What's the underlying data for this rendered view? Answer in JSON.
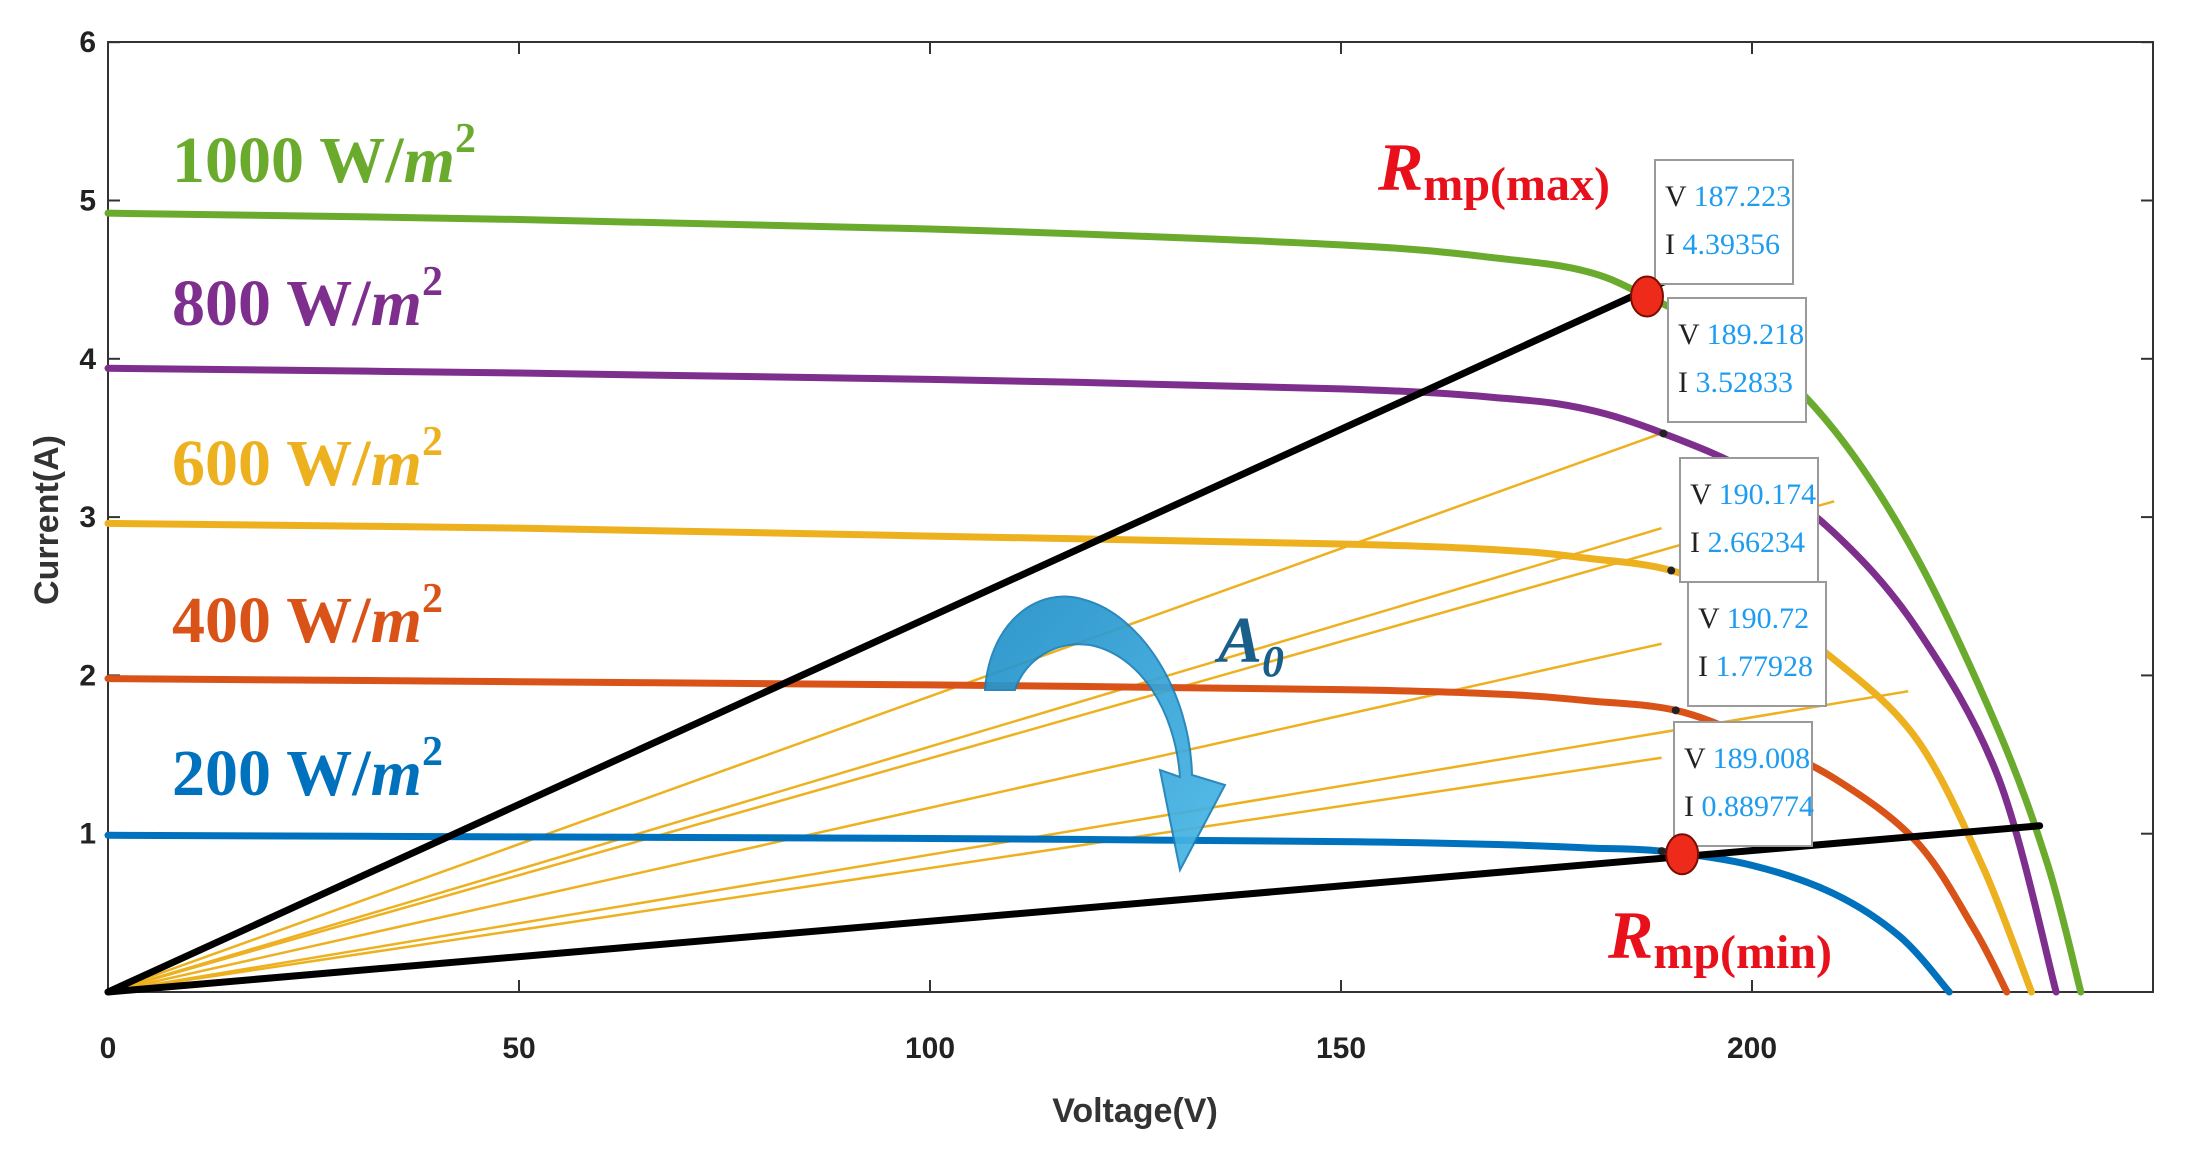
{
  "chart_data": {
    "type": "line",
    "title": "",
    "xlabel": "Voltage(V)",
    "ylabel": "Current(A)",
    "xlim": [
      0,
      250
    ],
    "ylim": [
      0,
      6
    ],
    "xticks": [
      "0",
      "50",
      "100",
      "150",
      "200"
    ],
    "xtick_values": [
      0,
      50,
      100,
      150,
      200
    ],
    "yticks": [
      "1",
      "2",
      "3",
      "4",
      "5",
      "6"
    ],
    "ytick_values": [
      1,
      2,
      3,
      4,
      5,
      6
    ],
    "series": [
      {
        "name": "1000 W/m2",
        "label_main": "1000 W/",
        "label_unit": "m",
        "label_sup": "2",
        "color": "#6aab2e",
        "points": [
          [
            0,
            4.92
          ],
          [
            50,
            4.88
          ],
          [
            100,
            4.82
          ],
          [
            150,
            4.72
          ],
          [
            170,
            4.63
          ],
          [
            180,
            4.55
          ],
          [
            187.223,
            4.39356
          ],
          [
            200,
            4.05
          ],
          [
            210,
            3.55
          ],
          [
            220,
            2.75
          ],
          [
            230,
            1.65
          ],
          [
            236,
            0.8
          ],
          [
            240,
            0.0
          ]
        ]
      },
      {
        "name": "800 W/m2",
        "label_main": "800 W/",
        "label_unit": "m",
        "label_sup": "2",
        "color": "#7e2f8e",
        "points": [
          [
            0,
            3.94
          ],
          [
            50,
            3.91
          ],
          [
            100,
            3.87
          ],
          [
            150,
            3.81
          ],
          [
            170,
            3.75
          ],
          [
            180,
            3.68
          ],
          [
            189.218,
            3.52833
          ],
          [
            200,
            3.28
          ],
          [
            210,
            2.9
          ],
          [
            220,
            2.3
          ],
          [
            230,
            1.35
          ],
          [
            237,
            0.0
          ]
        ]
      },
      {
        "name": "600 W/m2",
        "label_main": "600 W/",
        "label_unit": "m",
        "label_sup": "2",
        "color": "#edb120",
        "points": [
          [
            0,
            2.96
          ],
          [
            50,
            2.93
          ],
          [
            100,
            2.88
          ],
          [
            150,
            2.83
          ],
          [
            170,
            2.79
          ],
          [
            180,
            2.74
          ],
          [
            190.174,
            2.66234
          ],
          [
            200,
            2.45
          ],
          [
            210,
            2.1
          ],
          [
            220,
            1.6
          ],
          [
            228,
            0.8
          ],
          [
            234,
            0.0
          ]
        ]
      },
      {
        "name": "400 W/m2",
        "label_main": "400 W/",
        "label_unit": "m",
        "label_sup": "2",
        "color": "#d95319",
        "points": [
          [
            0,
            1.98
          ],
          [
            50,
            1.96
          ],
          [
            100,
            1.94
          ],
          [
            150,
            1.91
          ],
          [
            170,
            1.88
          ],
          [
            180,
            1.84
          ],
          [
            190.72,
            1.77928
          ],
          [
            200,
            1.6
          ],
          [
            210,
            1.35
          ],
          [
            220,
            0.95
          ],
          [
            227,
            0.4
          ],
          [
            231,
            0.0
          ]
        ]
      },
      {
        "name": "200 W/m2",
        "label_main": "200 W/",
        "label_unit": "m",
        "label_sup": "2",
        "color": "#0072bd",
        "points": [
          [
            0,
            0.99
          ],
          [
            50,
            0.98
          ],
          [
            100,
            0.97
          ],
          [
            150,
            0.95
          ],
          [
            170,
            0.93
          ],
          [
            180,
            0.91
          ],
          [
            189.008,
            0.889774
          ],
          [
            200,
            0.8
          ],
          [
            210,
            0.62
          ],
          [
            218,
            0.35
          ],
          [
            224,
            0.0
          ]
        ]
      }
    ],
    "mpp_points": [
      {
        "v_label": "V",
        "v": "187.223",
        "i_label": "I",
        "i": "4.39356",
        "x": 187.223,
        "y": 4.39356
      },
      {
        "v_label": "V",
        "v": "189.218",
        "i_label": "I",
        "i": "3.52833",
        "x": 189.218,
        "y": 3.52833
      },
      {
        "v_label": "V",
        "v": "190.174",
        "i_label": "I",
        "i": "2.66234",
        "x": 190.174,
        "y": 2.66234
      },
      {
        "v_label": "V",
        "v": "190.72",
        "i_label": "I",
        "i": "1.77928",
        "x": 190.72,
        "y": 1.77928
      },
      {
        "v_label": "V",
        "v": "189.008",
        "i_label": "I",
        "i": "0.889774",
        "x": 189.008,
        "y": 0.889774
      }
    ],
    "load_lines_black": [
      {
        "from": [
          0,
          0
        ],
        "to": [
          192,
          4.55
        ]
      },
      {
        "from": [
          0,
          0
        ],
        "to": [
          235,
          1.05
        ]
      }
    ],
    "load_lines_yellow": [
      {
        "from": [
          0,
          0
        ],
        "to": [
          189,
          3.53
        ]
      },
      {
        "from": [
          0,
          0
        ],
        "to": [
          189,
          2.93
        ]
      },
      {
        "from": [
          0,
          0
        ],
        "to": [
          189,
          2.2
        ]
      },
      {
        "from": [
          0,
          0
        ],
        "to": [
          219,
          1.9
        ]
      },
      {
        "from": [
          0,
          0
        ],
        "to": [
          189,
          1.48
        ]
      },
      {
        "from": [
          0,
          0
        ],
        "to": [
          210,
          3.1
        ]
      }
    ],
    "annotations": {
      "r_max": {
        "main": "R",
        "sub": "mp(max)",
        "x": 187.223,
        "y": 4.39356,
        "color": "#e8101a"
      },
      "r_min": {
        "main": "R",
        "sub": "mp(min)",
        "x": 191.5,
        "y": 0.87,
        "color": "#e8101a"
      },
      "arrow_label": {
        "main": "A",
        "sub": "0",
        "color": "#1a5f8a"
      },
      "arrow_color": "#2a9fd6"
    }
  }
}
